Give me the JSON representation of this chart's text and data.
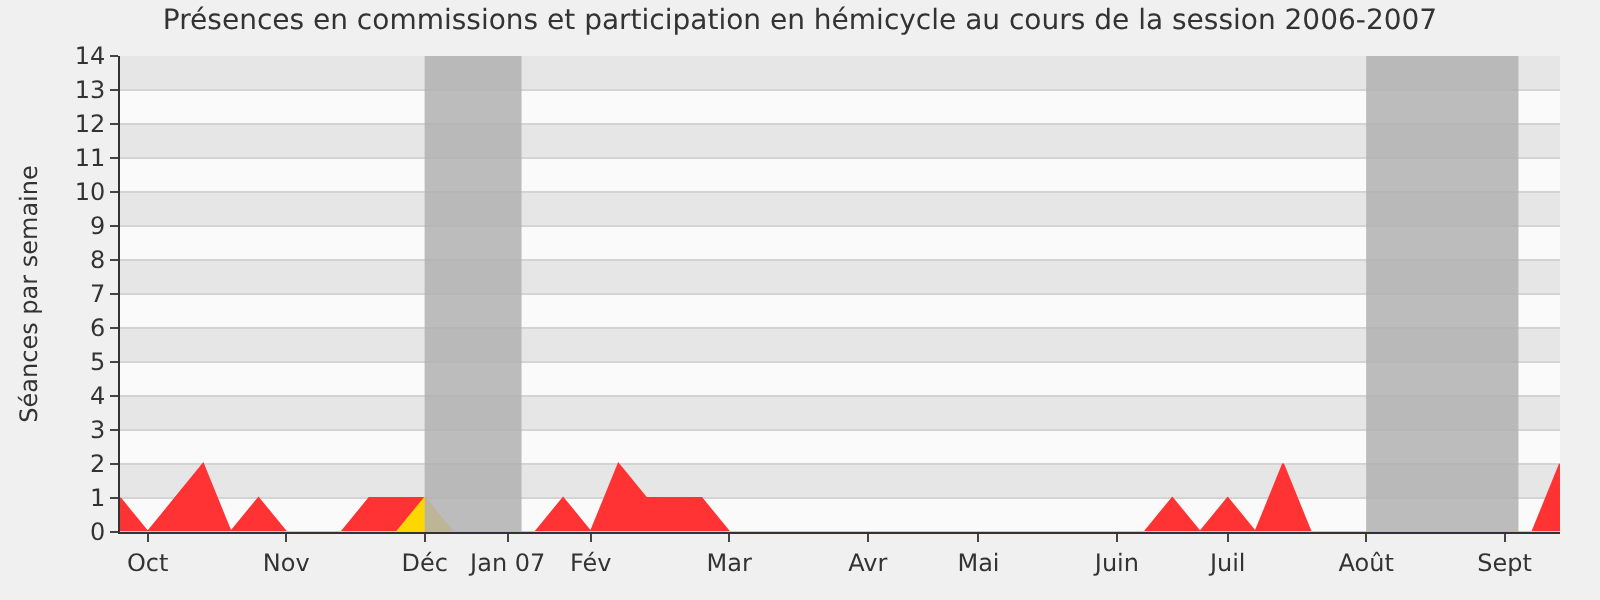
{
  "chart_data": {
    "type": "area",
    "title": "Présences en commissions et participation en hémicycle au cours de la session 2006-2007",
    "ylabel": "Séances par semaine",
    "categories": [
      null,
      "Oct",
      null,
      null,
      null,
      null,
      "Nov",
      null,
      null,
      null,
      null,
      "Déc",
      null,
      null,
      "Jan 07",
      null,
      null,
      "Fév",
      null,
      null,
      null,
      null,
      "Mar",
      null,
      null,
      null,
      null,
      "Avr",
      null,
      null,
      null,
      "Mai",
      null,
      null,
      null,
      null,
      "Juin",
      null,
      null,
      null,
      "Juil",
      null,
      null,
      null,
      null,
      "Août",
      null,
      null,
      null,
      null,
      "Sept",
      null,
      null
    ],
    "series": [
      {
        "color": "#ff3333",
        "values": [
          1,
          0,
          1,
          2,
          0,
          1,
          0,
          0,
          0,
          1,
          1,
          1,
          0,
          0,
          0,
          0,
          1,
          0,
          2,
          1,
          1,
          1,
          0,
          0,
          0,
          0,
          0,
          0,
          0,
          0,
          0,
          0,
          0,
          0,
          0,
          0,
          0,
          0,
          1,
          0,
          1,
          0,
          2,
          0,
          0,
          0,
          0,
          0,
          0,
          0,
          0,
          0,
          2
        ]
      },
      {
        "color": "#ffd700",
        "values": [
          0,
          0,
          0,
          0,
          0,
          0,
          0,
          0,
          0,
          0,
          0,
          1,
          0,
          0,
          0,
          0,
          0,
          0,
          0,
          0,
          0,
          0,
          0,
          0,
          0,
          0,
          0,
          0,
          0,
          0,
          0,
          0,
          0,
          0,
          0,
          0,
          0,
          0,
          0,
          0,
          0,
          0,
          0,
          0,
          0,
          0,
          0,
          0,
          0,
          0,
          0,
          0,
          0
        ]
      }
    ],
    "ylim": [
      0,
      14
    ],
    "yticks": [
      0,
      1,
      2,
      3,
      4,
      5,
      6,
      7,
      8,
      9,
      10,
      11,
      12,
      13,
      14
    ],
    "bands": [
      {
        "axis": "x",
        "from": "Déc",
        "to": "Jan 07",
        "color": "#b0b0b0"
      },
      {
        "axis": "x",
        "from": "Août",
        "to": "Sept",
        "color": "#b0b0b0"
      }
    ],
    "grid": "y",
    "legend": false
  }
}
